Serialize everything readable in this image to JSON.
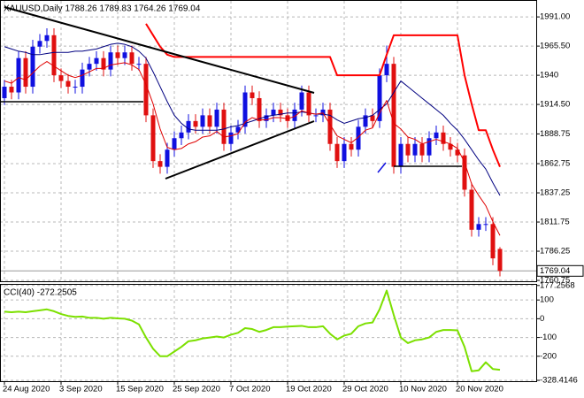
{
  "chart_data": [
    {
      "type": "candlestick",
      "title": "XAUUSD,Daily  1788.26 1789.83 1764.26 1769.04",
      "x": [
        "24 Aug 2020",
        null,
        null,
        null,
        null,
        null,
        null,
        null,
        "3 Sep 2020",
        null,
        null,
        null,
        null,
        null,
        null,
        null,
        "15 Sep 2020",
        null,
        null,
        null,
        null,
        null,
        null,
        null,
        "25 Sep 2020",
        null,
        null,
        null,
        null,
        null,
        null,
        null,
        "7 Oct 2020",
        null,
        null,
        null,
        null,
        null,
        null,
        null,
        "19 Oct 2020",
        null,
        null,
        null,
        null,
        null,
        null,
        null,
        "29 Oct 2020",
        null,
        null,
        null,
        null,
        null,
        null,
        null,
        "10 Nov 2020",
        null,
        null,
        null,
        null,
        null,
        null,
        null,
        "20 Nov 2020",
        null,
        null,
        null,
        null,
        null,
        null
      ],
      "open": [
        1920,
        1930,
        1925,
        1955,
        1930,
        1965,
        1970,
        1975,
        1940,
        1935,
        1930,
        1930,
        1945,
        1950,
        1955,
        1945,
        1960,
        1955,
        1960,
        1950,
        1950,
        1905,
        1865,
        1860,
        1875,
        1885,
        1890,
        1900,
        1895,
        1905,
        1895,
        1910,
        1880,
        1890,
        1895,
        1925,
        1920,
        1900,
        1905,
        1910,
        1905,
        1900,
        1910,
        1925,
        1905,
        1905,
        1910,
        1880,
        1865,
        1880,
        1875,
        1895,
        1905,
        1900,
        1940,
        1950,
        1860,
        1880,
        1870,
        1880,
        1870,
        1885,
        1890,
        1880,
        1875,
        1870,
        1840,
        1805,
        1810,
        1810,
        1788.26
      ],
      "high": [
        1936,
        1936,
        1961,
        1961,
        1971,
        1976,
        1981,
        1981,
        1946,
        1941,
        1936,
        1951,
        1956,
        1961,
        1961,
        1966,
        1966,
        1966,
        1966,
        1956,
        1956,
        1911,
        1871,
        1881,
        1891,
        1896,
        1906,
        1906,
        1911,
        1911,
        1916,
        1916,
        1896,
        1901,
        1931,
        1931,
        1926,
        1911,
        1916,
        1916,
        1911,
        1916,
        1931,
        1931,
        1911,
        1916,
        1916,
        1886,
        1886,
        1886,
        1901,
        1911,
        1911,
        1946,
        1966,
        1956,
        1886,
        1886,
        1886,
        1886,
        1891,
        1896,
        1896,
        1886,
        1881,
        1876,
        1846,
        1816,
        1816,
        1816,
        1789.83
      ],
      "low": [
        1914,
        1919,
        1919,
        1924,
        1924,
        1959,
        1964,
        1934,
        1929,
        1924,
        1924,
        1924,
        1939,
        1944,
        1939,
        1939,
        1949,
        1949,
        1944,
        1944,
        1899,
        1859,
        1854,
        1854,
        1869,
        1879,
        1884,
        1889,
        1889,
        1889,
        1889,
        1874,
        1874,
        1884,
        1889,
        1914,
        1894,
        1894,
        1899,
        1899,
        1894,
        1894,
        1904,
        1899,
        1899,
        1899,
        1874,
        1859,
        1859,
        1869,
        1869,
        1889,
        1894,
        1894,
        1934,
        1854,
        1854,
        1864,
        1864,
        1864,
        1864,
        1879,
        1874,
        1869,
        1864,
        1834,
        1799,
        1799,
        1804,
        1774,
        1764.26
      ],
      "close": [
        1930,
        1925,
        1955,
        1930,
        1965,
        1970,
        1975,
        1940,
        1935,
        1930,
        1930,
        1945,
        1950,
        1955,
        1945,
        1960,
        1955,
        1960,
        1950,
        1950,
        1905,
        1865,
        1860,
        1875,
        1885,
        1890,
        1900,
        1895,
        1905,
        1895,
        1910,
        1880,
        1890,
        1895,
        1925,
        1920,
        1900,
        1905,
        1910,
        1905,
        1900,
        1910,
        1925,
        1905,
        1905,
        1910,
        1880,
        1865,
        1880,
        1875,
        1895,
        1905,
        1900,
        1940,
        1950,
        1860,
        1880,
        1870,
        1880,
        1870,
        1885,
        1890,
        1880,
        1875,
        1870,
        1840,
        1805,
        1810,
        1810,
        1780,
        1769.04
      ],
      "up_color": "#1010e0",
      "down_color": "#e01010",
      "series": [
        {
          "color": "#000080",
          "width": 1,
          "values": [
            1965,
            1963,
            1961,
            1960,
            1958,
            1958,
            1959,
            1960,
            1960,
            1960,
            1961,
            1961,
            1962,
            1963,
            1965,
            1967,
            1968,
            1967,
            1965,
            1961,
            1955,
            1943,
            1930,
            1917,
            1905,
            1898,
            1893,
            1892,
            1892,
            1892,
            1892,
            1893,
            1895,
            1896,
            1898,
            1900,
            1902,
            1904,
            1905,
            1906,
            1907,
            1907,
            1908,
            1907,
            1906,
            1906,
            1905,
            1901,
            1898,
            1900,
            1902,
            1903,
            1905,
            1910,
            1915,
            1925,
            1935,
            1930,
            1925,
            1920,
            1915,
            1910,
            1905,
            1898,
            1892,
            1884,
            1875,
            1866,
            1858,
            1846,
            1835
          ]
        },
        {
          "color": "#e00000",
          "width": 1,
          "values": [
            1935,
            1933,
            1938,
            1936,
            1942,
            1948,
            1952,
            1948,
            1944,
            1940,
            1938,
            1940,
            1943,
            1946,
            1946,
            1949,
            1950,
            1951,
            1949,
            1945,
            1932,
            1915,
            1893,
            1877,
            1875,
            1876,
            1880,
            1882,
            1886,
            1887,
            1891,
            1886,
            1887,
            1889,
            1899,
            1903,
            1901,
            1901,
            1903,
            1903,
            1902,
            1904,
            1909,
            1907,
            1906,
            1907,
            1897,
            1887,
            1884,
            1881,
            1886,
            1892,
            1894,
            1907,
            1918,
            1898,
            1893,
            1886,
            1884,
            1880,
            1882,
            1884,
            1882,
            1880,
            1876,
            1864,
            1845,
            1835,
            1826,
            1812,
            1800
          ]
        },
        {
          "color": "#ff0000",
          "width": 2,
          "values": [
            null,
            null,
            null,
            null,
            null,
            null,
            null,
            null,
            null,
            null,
            null,
            null,
            null,
            null,
            null,
            null,
            null,
            null,
            null,
            null,
            1985,
            1975,
            1965,
            1958,
            1956,
            1956,
            1956,
            1956,
            1956,
            1956,
            1956,
            1956,
            1956,
            1956,
            1956,
            1956,
            1956,
            1956,
            1956,
            1956,
            1956,
            1956,
            1956,
            1956,
            1956,
            1956,
            1956,
            1940,
            1940,
            1940,
            1940,
            1940,
            1940,
            1940,
            1958,
            1975,
            1975,
            1975,
            1975,
            1975,
            1975,
            1975,
            1975,
            1975,
            1975,
            1940,
            1915,
            1892,
            1892,
            1875,
            1860
          ]
        }
      ],
      "last_price": 1769.04,
      "ylim": [
        1760,
        2005
      ],
      "yticks": [
        {
          "value": 1991,
          "label": "1991.00"
        },
        {
          "value": 1965.5,
          "label": "1965.50"
        },
        1940,
        {
          "value": 1914.5,
          "label": "1914.50"
        },
        1888.75,
        1862.75,
        1837.25,
        1811.75,
        1786.25,
        1760.75
      ],
      "grid": true
    },
    {
      "type": "line",
      "title": "CCI(40) -272.2505",
      "series": [
        {
          "color": "#7ce000",
          "width": 2,
          "values": [
            38,
            35,
            38,
            35,
            40,
            45,
            50,
            40,
            25,
            15,
            10,
            12,
            5,
            5,
            0,
            5,
            2,
            0,
            -10,
            -30,
            -100,
            -160,
            -200,
            -200,
            -175,
            -150,
            -120,
            -115,
            -105,
            -100,
            -95,
            -100,
            -85,
            -75,
            -50,
            -55,
            -70,
            -60,
            -45,
            -45,
            -42,
            -40,
            -38,
            -45,
            -45,
            -40,
            -80,
            -110,
            -90,
            -80,
            -40,
            -25,
            -20,
            50,
            150,
            20,
            -100,
            -130,
            -115,
            -110,
            -100,
            -70,
            -60,
            -60,
            -62,
            -150,
            -280,
            -275,
            -232,
            -268,
            -272.2505
          ]
        }
      ],
      "ylim": [
        -333,
        181
      ],
      "yticks": [
        177.2568,
        100,
        0,
        -100,
        -200,
        -328.4146
      ],
      "grid": true
    }
  ]
}
